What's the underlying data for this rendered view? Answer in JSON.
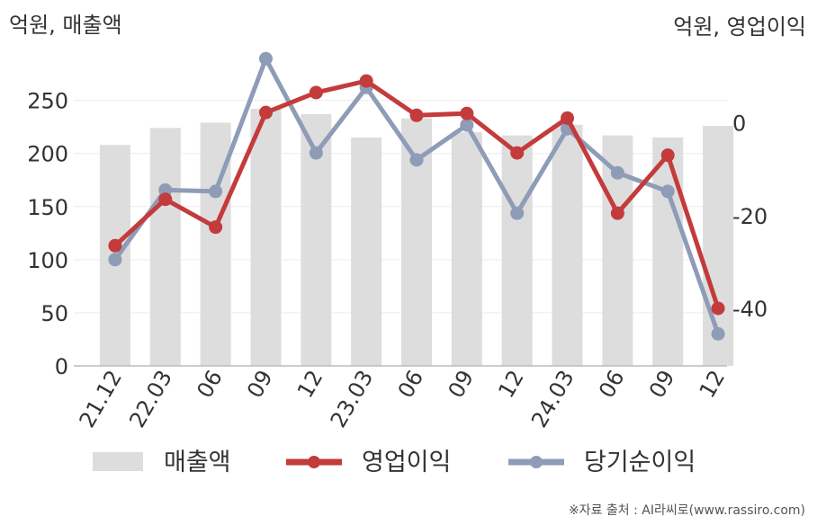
{
  "chart_data": {
    "type": "bar+line",
    "left_axis_label": "억원, 매출액",
    "right_axis_label": "억원, 영업이익",
    "categories": [
      "21.12",
      "22.03",
      "06",
      "09",
      "12",
      "23.03",
      "06",
      "09",
      "12",
      "24.03",
      "06",
      "09",
      "12"
    ],
    "left_ticks": [
      0,
      50,
      100,
      150,
      200,
      250
    ],
    "right_ticks": [
      0,
      -20,
      -40
    ],
    "left_ylim": [
      0,
      270
    ],
    "right_ylim": [
      -52.4,
      9.4
    ],
    "grid": true,
    "legend_position": "bottom",
    "series": [
      {
        "name": "매출액",
        "type": "bar",
        "axis": "left",
        "color": "#dddddd",
        "values": [
          208,
          224,
          229,
          242,
          237,
          215,
          233,
          220,
          217,
          227,
          217,
          215,
          226
        ]
      },
      {
        "name": "영업이익",
        "type": "line",
        "axis": "right",
        "color": "#c43b3b",
        "values": [
          -26.5,
          -16.5,
          -22.5,
          2.2,
          6.5,
          9.0,
          1.6,
          2.0,
          -6.5,
          1.0,
          -19.5,
          -7.0,
          -40.0
        ]
      },
      {
        "name": "당기순이익",
        "type": "line",
        "axis": "right",
        "color": "#8e9cb8",
        "values": [
          -29.5,
          -14.5,
          -14.8,
          13.8,
          -6.5,
          7.6,
          -8.0,
          -0.5,
          -19.5,
          -1.3,
          -10.8,
          -14.8,
          -45.5
        ]
      }
    ]
  },
  "source_note": "※자료 출처 : AI라씨로(www.rassiro.com)"
}
